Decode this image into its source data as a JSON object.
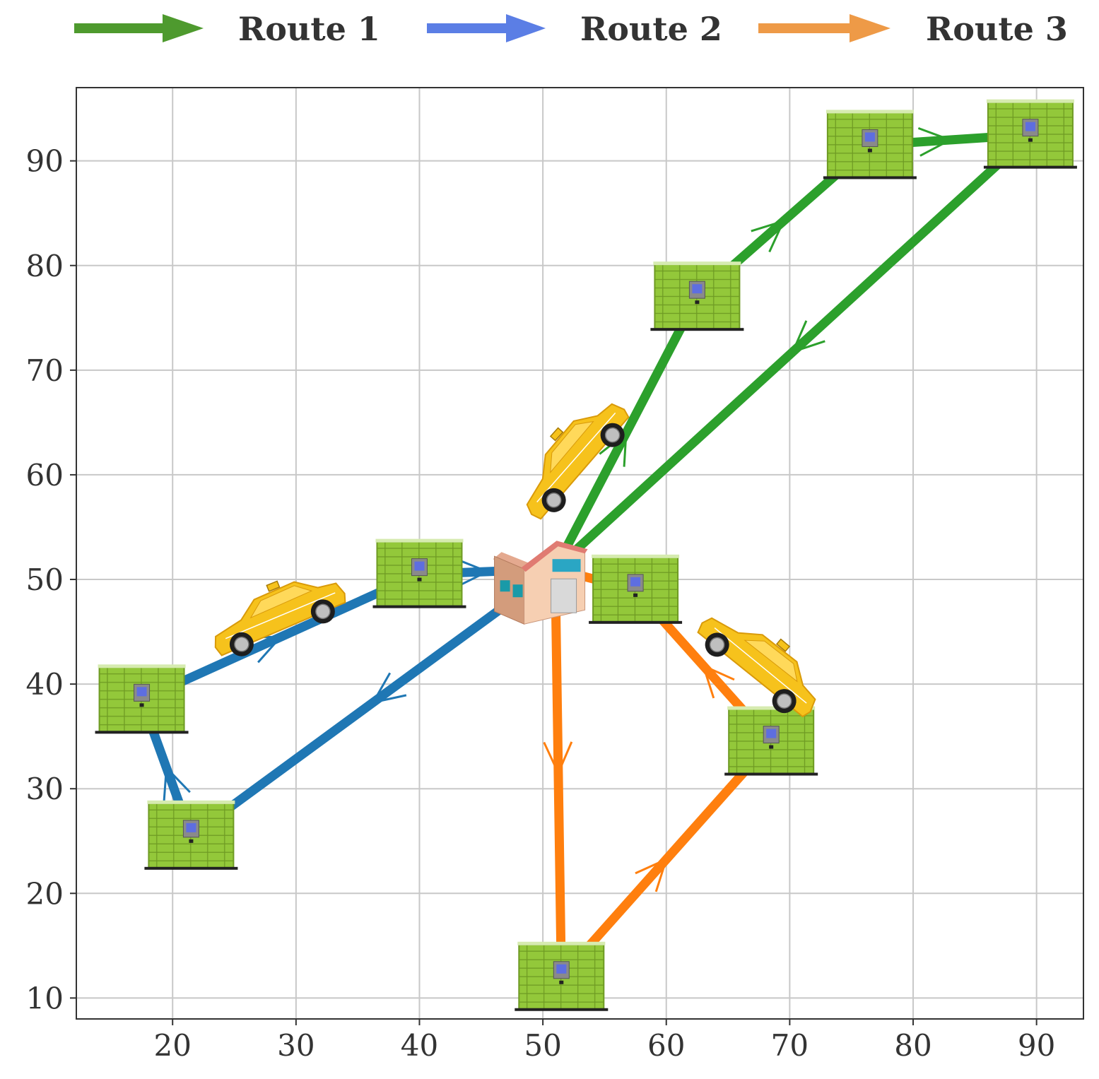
{
  "chart_data": {
    "type": "line",
    "title": "",
    "xlabel": "",
    "ylabel": "",
    "xlim": [
      12.2,
      93.8
    ],
    "ylim": [
      8.0,
      97.0
    ],
    "xticks": [
      20,
      30,
      40,
      50,
      60,
      70,
      80,
      90
    ],
    "yticks": [
      10,
      20,
      30,
      40,
      50,
      60,
      70,
      80,
      90
    ],
    "grid": true,
    "legend_position": "top",
    "depot": {
      "x": 51,
      "y": 51
    },
    "stations": [
      {
        "x": 17.5,
        "y": 38.5
      },
      {
        "x": 21.5,
        "y": 25.5
      },
      {
        "x": 40.0,
        "y": 50.5
      },
      {
        "x": 62.5,
        "y": 77.0
      },
      {
        "x": 76.5,
        "y": 91.5
      },
      {
        "x": 89.5,
        "y": 92.5
      },
      {
        "x": 57.5,
        "y": 49.0
      },
      {
        "x": 68.5,
        "y": 34.5
      },
      {
        "x": 51.5,
        "y": 12.0
      }
    ],
    "cars": [
      {
        "x": 28.5,
        "y": 46.5,
        "angle": -22
      },
      {
        "x": 52.5,
        "y": 61.5,
        "angle": -48
      },
      {
        "x": 67.5,
        "y": 42.0,
        "angle": 40
      }
    ],
    "series": [
      {
        "name": "Route 1",
        "color": "#2ca02c",
        "legend_color": "#4e9a2e",
        "points": [
          [
            51,
            51
          ],
          [
            62.5,
            77.0
          ],
          [
            76.5,
            91.5
          ],
          [
            89.5,
            92.5
          ],
          [
            51,
            51
          ]
        ]
      },
      {
        "name": "Route 2",
        "color": "#1f77b4",
        "legend_color": "#5b7ee5",
        "points": [
          [
            51,
            51
          ],
          [
            21.5,
            25.5
          ],
          [
            17.5,
            38.5
          ],
          [
            40.0,
            50.5
          ],
          [
            51,
            51
          ]
        ]
      },
      {
        "name": "Route 3",
        "color": "#ff7f0e",
        "legend_color": "#ee9a47",
        "points": [
          [
            51,
            51
          ],
          [
            51.5,
            12.0
          ],
          [
            68.5,
            34.5
          ],
          [
            57.5,
            49.0
          ],
          [
            51,
            51
          ]
        ]
      }
    ]
  }
}
